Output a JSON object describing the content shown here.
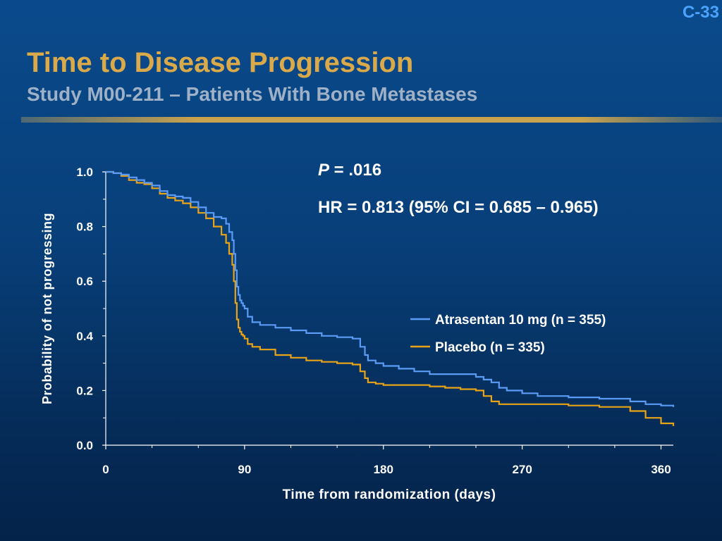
{
  "slide": {
    "number": "C-33",
    "title": "Time to Disease Progression",
    "subtitle": "Study M00-211 – Patients With Bone Metastases"
  },
  "stats": {
    "p_label": "P",
    "p_value": " = .016",
    "hr": "HR = 0.813 (95% CI = 0.685 – 0.965)"
  },
  "colors": {
    "atrasentan": "#5b9bf5",
    "placebo": "#e8a317",
    "axis": "#ffffff",
    "title": "#d9a94a",
    "subtitle": "#9fb1c6"
  },
  "chart_data": {
    "type": "line",
    "title": "",
    "xlabel": "Time from randomization (days)",
    "ylabel": "Probability of not progressing",
    "xlim": [
      0,
      368
    ],
    "ylim": [
      0,
      1.0
    ],
    "xticks": [
      0,
      90,
      180,
      270,
      360
    ],
    "yticks": [
      0.0,
      0.2,
      0.4,
      0.6,
      0.8,
      1.0
    ],
    "ytick_labels": [
      "0.0",
      "0.2",
      "0.4",
      "0.6",
      "0.8",
      "1.0"
    ],
    "grid": false,
    "legend_position": "center-right",
    "step": true,
    "series": [
      {
        "name": "Atrasentan 10 mg (n = 355)",
        "x": [
          0,
          5,
          10,
          15,
          20,
          25,
          30,
          35,
          40,
          45,
          50,
          55,
          60,
          65,
          70,
          75,
          78,
          80,
          82,
          83,
          84,
          85,
          86,
          87,
          88,
          89,
          90,
          92,
          95,
          100,
          110,
          120,
          130,
          140,
          150,
          160,
          165,
          168,
          170,
          175,
          180,
          190,
          200,
          210,
          220,
          230,
          240,
          245,
          250,
          255,
          260,
          270,
          280,
          300,
          320,
          340,
          350,
          360,
          368
        ],
        "y": [
          1.0,
          0.995,
          0.99,
          0.98,
          0.97,
          0.96,
          0.95,
          0.93,
          0.915,
          0.91,
          0.905,
          0.89,
          0.87,
          0.85,
          0.835,
          0.83,
          0.81,
          0.78,
          0.75,
          0.7,
          0.64,
          0.58,
          0.55,
          0.53,
          0.52,
          0.51,
          0.5,
          0.47,
          0.45,
          0.44,
          0.43,
          0.42,
          0.41,
          0.4,
          0.395,
          0.39,
          0.36,
          0.33,
          0.31,
          0.3,
          0.29,
          0.28,
          0.27,
          0.26,
          0.26,
          0.26,
          0.25,
          0.24,
          0.23,
          0.21,
          0.2,
          0.19,
          0.18,
          0.175,
          0.17,
          0.16,
          0.15,
          0.145,
          0.14
        ]
      },
      {
        "name": "Placebo (n = 335)",
        "x": [
          0,
          5,
          10,
          15,
          20,
          25,
          30,
          35,
          40,
          45,
          50,
          55,
          60,
          65,
          70,
          75,
          78,
          80,
          82,
          83,
          84,
          85,
          86,
          87,
          88,
          89,
          90,
          92,
          95,
          100,
          110,
          120,
          130,
          140,
          150,
          160,
          165,
          168,
          170,
          175,
          180,
          190,
          200,
          210,
          220,
          230,
          240,
          245,
          250,
          255,
          260,
          270,
          280,
          300,
          320,
          340,
          350,
          360,
          368
        ],
        "y": [
          1.0,
          0.995,
          0.985,
          0.97,
          0.96,
          0.955,
          0.94,
          0.92,
          0.905,
          0.895,
          0.885,
          0.87,
          0.85,
          0.83,
          0.8,
          0.77,
          0.74,
          0.7,
          0.66,
          0.6,
          0.52,
          0.46,
          0.43,
          0.415,
          0.405,
          0.4,
          0.39,
          0.37,
          0.36,
          0.35,
          0.33,
          0.32,
          0.31,
          0.305,
          0.3,
          0.295,
          0.27,
          0.245,
          0.23,
          0.225,
          0.22,
          0.22,
          0.22,
          0.215,
          0.21,
          0.205,
          0.2,
          0.18,
          0.16,
          0.15,
          0.15,
          0.15,
          0.15,
          0.145,
          0.14,
          0.125,
          0.1,
          0.08,
          0.07
        ]
      }
    ]
  }
}
